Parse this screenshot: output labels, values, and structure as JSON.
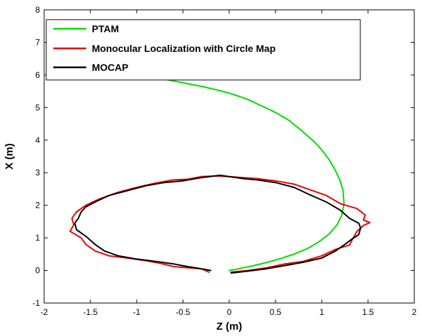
{
  "chart_data": {
    "type": "line",
    "title": "",
    "xlabel": "Z (m)",
    "ylabel": "X (m)",
    "xlim": [
      -2,
      2
    ],
    "ylim": [
      -1,
      8
    ],
    "xticks": [
      -2,
      -1.5,
      -1,
      -0.5,
      0,
      0.5,
      1,
      1.5,
      2
    ],
    "xtick_labels": [
      "-2",
      "-1.5",
      "-1",
      "-0.5",
      "0",
      "0.5",
      "1",
      "1.5",
      "2"
    ],
    "yticks": [
      -1,
      0,
      1,
      2,
      3,
      4,
      5,
      6,
      7,
      8
    ],
    "ytick_labels": [
      "-1",
      "0",
      "1",
      "2",
      "3",
      "4",
      "5",
      "6",
      "7",
      "8"
    ],
    "grid": false,
    "legend_position": "top-left",
    "series": [
      {
        "name": "PTAM",
        "color": "#00dd00",
        "points": [
          [
            0.0,
            0.0
          ],
          [
            0.1,
            0.05
          ],
          [
            0.25,
            0.14
          ],
          [
            0.4,
            0.24
          ],
          [
            0.55,
            0.36
          ],
          [
            0.7,
            0.5
          ],
          [
            0.85,
            0.68
          ],
          [
            0.97,
            0.88
          ],
          [
            1.08,
            1.12
          ],
          [
            1.17,
            1.42
          ],
          [
            1.22,
            1.72
          ],
          [
            1.24,
            2.05
          ],
          [
            1.23,
            2.45
          ],
          [
            1.2,
            2.75
          ],
          [
            1.15,
            3.05
          ],
          [
            1.08,
            3.4
          ],
          [
            1.0,
            3.7
          ],
          [
            0.92,
            3.95
          ],
          [
            0.8,
            4.25
          ],
          [
            0.65,
            4.6
          ],
          [
            0.5,
            4.85
          ],
          [
            0.35,
            5.05
          ],
          [
            0.2,
            5.25
          ],
          [
            0.05,
            5.4
          ],
          [
            -0.1,
            5.52
          ],
          [
            -0.3,
            5.65
          ],
          [
            -0.5,
            5.76
          ],
          [
            -0.7,
            5.87
          ]
        ]
      },
      {
        "name": "Monocular Localization with Circle Map",
        "color": "#ee0000",
        "points": [
          [
            0.02,
            -0.05
          ],
          [
            0.2,
            0.0
          ],
          [
            0.4,
            0.08
          ],
          [
            0.6,
            0.2
          ],
          [
            0.8,
            0.28
          ],
          [
            1.0,
            0.45
          ],
          [
            1.15,
            0.65
          ],
          [
            1.3,
            0.78
          ],
          [
            1.33,
            0.95
          ],
          [
            1.38,
            1.2
          ],
          [
            1.45,
            1.38
          ],
          [
            1.52,
            1.47
          ],
          [
            1.45,
            1.55
          ],
          [
            1.47,
            1.7
          ],
          [
            1.38,
            1.9
          ],
          [
            1.2,
            2.05
          ],
          [
            1.05,
            2.3
          ],
          [
            0.85,
            2.5
          ],
          [
            0.7,
            2.65
          ],
          [
            0.5,
            2.75
          ],
          [
            0.3,
            2.82
          ],
          [
            0.15,
            2.85
          ],
          [
            0.0,
            2.88
          ],
          [
            -0.15,
            2.9
          ],
          [
            -0.3,
            2.88
          ],
          [
            -0.45,
            2.8
          ],
          [
            -0.6,
            2.78
          ],
          [
            -0.8,
            2.68
          ],
          [
            -1.0,
            2.55
          ],
          [
            -1.2,
            2.4
          ],
          [
            -1.4,
            2.2
          ],
          [
            -1.55,
            2.0
          ],
          [
            -1.65,
            1.8
          ],
          [
            -1.7,
            1.6
          ],
          [
            -1.68,
            1.4
          ],
          [
            -1.72,
            1.2
          ],
          [
            -1.6,
            1.0
          ],
          [
            -1.55,
            0.8
          ],
          [
            -1.45,
            0.6
          ],
          [
            -1.3,
            0.45
          ],
          [
            -1.1,
            0.38
          ],
          [
            -0.9,
            0.3
          ],
          [
            -0.75,
            0.22
          ],
          [
            -0.6,
            0.12
          ],
          [
            -0.45,
            0.08
          ],
          [
            -0.3,
            0.05
          ],
          [
            -0.22,
            -0.05
          ]
        ]
      },
      {
        "name": "MOCAP",
        "color": "#000000",
        "points": [
          [
            0.02,
            -0.08
          ],
          [
            0.2,
            -0.02
          ],
          [
            0.4,
            0.05
          ],
          [
            0.6,
            0.15
          ],
          [
            0.8,
            0.25
          ],
          [
            1.0,
            0.38
          ],
          [
            1.15,
            0.6
          ],
          [
            1.25,
            0.8
          ],
          [
            1.32,
            0.95
          ],
          [
            1.4,
            1.1
          ],
          [
            1.42,
            1.3
          ],
          [
            1.4,
            1.45
          ],
          [
            1.3,
            1.6
          ],
          [
            1.2,
            1.85
          ],
          [
            1.05,
            2.1
          ],
          [
            0.85,
            2.35
          ],
          [
            0.7,
            2.55
          ],
          [
            0.5,
            2.7
          ],
          [
            0.3,
            2.78
          ],
          [
            0.15,
            2.82
          ],
          [
            0.0,
            2.88
          ],
          [
            -0.1,
            2.92
          ],
          [
            -0.3,
            2.85
          ],
          [
            -0.5,
            2.75
          ],
          [
            -0.7,
            2.7
          ],
          [
            -0.9,
            2.6
          ],
          [
            -1.1,
            2.45
          ],
          [
            -1.3,
            2.3
          ],
          [
            -1.45,
            2.1
          ],
          [
            -1.55,
            1.95
          ],
          [
            -1.6,
            1.8
          ],
          [
            -1.63,
            1.6
          ],
          [
            -1.67,
            1.45
          ],
          [
            -1.65,
            1.25
          ],
          [
            -1.55,
            1.05
          ],
          [
            -1.45,
            0.8
          ],
          [
            -1.35,
            0.6
          ],
          [
            -1.2,
            0.45
          ],
          [
            -1.0,
            0.35
          ],
          [
            -0.8,
            0.28
          ],
          [
            -0.6,
            0.2
          ],
          [
            -0.45,
            0.12
          ],
          [
            -0.3,
            0.05
          ],
          [
            -0.2,
            0.0
          ]
        ]
      }
    ]
  }
}
